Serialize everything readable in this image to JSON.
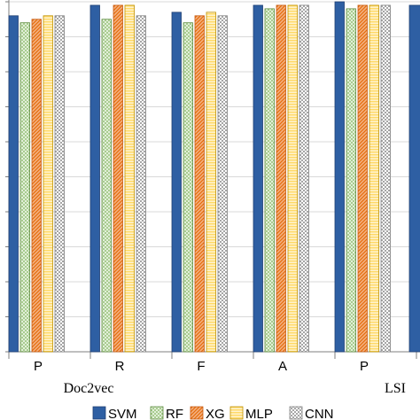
{
  "chart_data": {
    "type": "bar",
    "title": "",
    "xlabel": "",
    "ylabel": "",
    "categories": [
      "P",
      "R",
      "F",
      "A",
      "P"
    ],
    "groups": [
      {
        "label": "Doc2vec"
      },
      {
        "label": "LSI"
      }
    ],
    "ylim": [
      0,
      1
    ],
    "grid": true,
    "legend_position": "bottom",
    "series": [
      {
        "name": "SVM",
        "color": "#2e5fa3",
        "pattern": "solid",
        "values": [
          0.96,
          0.99,
          0.97,
          0.99,
          1.0
        ]
      },
      {
        "name": "RF",
        "color": "#7fb35a",
        "pattern": "dots",
        "values": [
          0.94,
          0.95,
          0.94,
          0.98,
          0.98
        ]
      },
      {
        "name": "XG",
        "color": "#ed7d31",
        "pattern": "diagonal",
        "values": [
          0.95,
          0.99,
          0.96,
          0.99,
          0.99
        ]
      },
      {
        "name": "MLP",
        "color": "#ffd966",
        "pattern": "horizontal",
        "values": [
          0.96,
          0.99,
          0.97,
          0.99,
          0.99
        ]
      },
      {
        "name": "CNN",
        "color": "#a6a6a6",
        "pattern": "checker",
        "values": [
          0.96,
          0.96,
          0.96,
          0.99,
          0.99
        ]
      }
    ]
  }
}
